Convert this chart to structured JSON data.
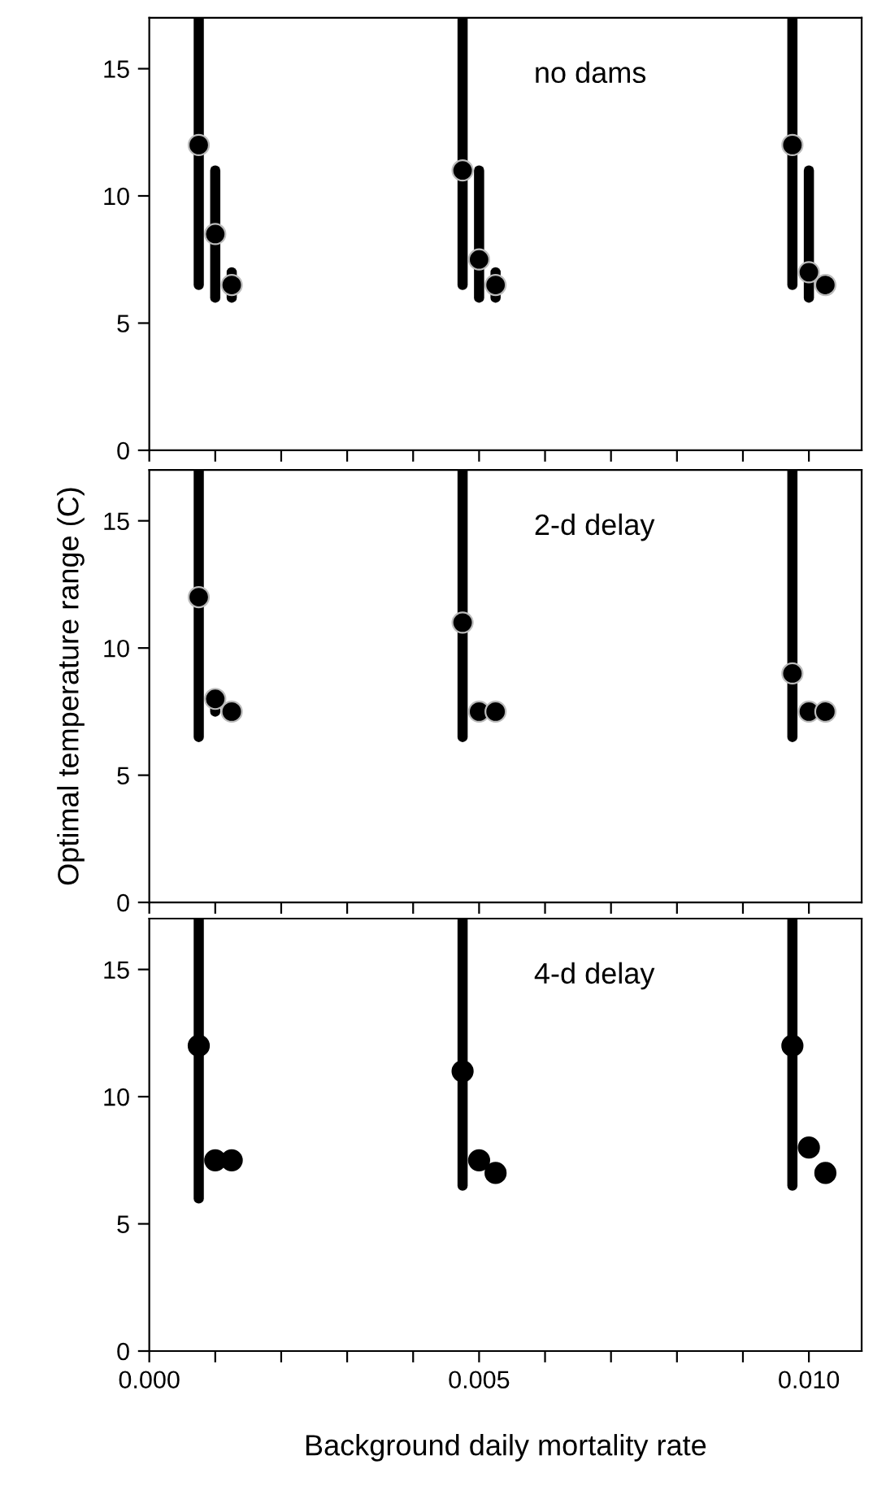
{
  "chart_data": [
    {
      "type": "scatter",
      "x": [
        0.00075,
        0.001,
        0.00125,
        0.00475,
        0.005,
        0.00525,
        0.00975,
        0.01,
        0.01025
      ],
      "series": [
        {
          "color": "#000000",
          "values": [
            12,
            8.5,
            6.5,
            11,
            7.5,
            6.5,
            12,
            7,
            6.5
          ],
          "errors": [
            [
              6.5,
              17
            ],
            [
              6,
              11
            ],
            [
              6,
              7
            ],
            [
              6.5,
              17
            ],
            [
              6,
              11
            ],
            [
              6,
              7
            ],
            [
              6.5,
              17
            ],
            [
              6,
              11
            ],
            null
          ]
        }
      ],
      "annotations": [
        "no dams"
      ],
      "marker": "circle",
      "tick_labels": "y",
      "xlim": [
        0,
        0.0108
      ],
      "xticks": [
        {
          "value": 0,
          "label": null
        },
        {
          "value": 0.001,
          "label": null
        },
        {
          "value": 0.002,
          "label": null
        },
        {
          "value": 0.003,
          "label": null
        },
        {
          "value": 0.004,
          "label": null
        },
        {
          "value": 0.005,
          "label": null
        },
        {
          "value": 0.006,
          "label": null
        },
        {
          "value": 0.007,
          "label": null
        },
        {
          "value": 0.008,
          "label": null
        },
        {
          "value": 0.009,
          "label": null
        },
        {
          "value": 0.01,
          "label": null
        }
      ],
      "ylim": [
        0,
        17
      ],
      "yticks": [
        0,
        5,
        10,
        15
      ]
    },
    {
      "type": "scatter",
      "x": [
        0.00075,
        0.001,
        0.00125,
        0.00475,
        0.005,
        0.00525,
        0.00975,
        0.01,
        0.01025
      ],
      "series": [
        {
          "color": "#000000",
          "values": [
            12,
            8,
            7.5,
            11,
            7.5,
            7.5,
            9,
            7.5,
            7.5
          ],
          "errors": [
            [
              6.5,
              17
            ],
            [
              7.5,
              8
            ],
            null,
            [
              6.5,
              17
            ],
            null,
            null,
            [
              6.5,
              17
            ],
            null,
            null
          ]
        }
      ],
      "annotations": [
        "2-d delay"
      ],
      "marker": "circle",
      "tick_labels": "y",
      "ylabel": "Optimal temperature range (C)",
      "xlim": [
        0,
        0.0108
      ],
      "xticks": [
        {
          "value": 0,
          "label": null
        },
        {
          "value": 0.001,
          "label": null
        },
        {
          "value": 0.002,
          "label": null
        },
        {
          "value": 0.003,
          "label": null
        },
        {
          "value": 0.004,
          "label": null
        },
        {
          "value": 0.005,
          "label": null
        },
        {
          "value": 0.006,
          "label": null
        },
        {
          "value": 0.007,
          "label": null
        },
        {
          "value": 0.008,
          "label": null
        },
        {
          "value": 0.009,
          "label": null
        },
        {
          "value": 0.01,
          "label": null
        }
      ],
      "ylim": [
        0,
        17
      ],
      "yticks": [
        0,
        5,
        10,
        15
      ]
    },
    {
      "type": "scatter",
      "x": [
        0.00075,
        0.001,
        0.00125,
        0.00475,
        0.005,
        0.00525,
        0.00975,
        0.01,
        0.01025
      ],
      "series": [
        {
          "color": "#000000",
          "values": [
            12,
            7.5,
            7.5,
            11,
            7.5,
            7,
            12,
            8,
            7
          ],
          "errors": [
            [
              6,
              17
            ],
            null,
            null,
            [
              6.5,
              17
            ],
            null,
            null,
            [
              6.5,
              17
            ],
            null,
            null
          ]
        }
      ],
      "annotations": [
        "4-d delay"
      ],
      "marker": "circle",
      "xlabel": "Background daily mortality rate",
      "xlim": [
        0,
        0.0108
      ],
      "xticks": [
        {
          "value": 0,
          "label": "0.000"
        },
        {
          "value": 0.001,
          "label": null
        },
        {
          "value": 0.002,
          "label": null
        },
        {
          "value": 0.003,
          "label": null
        },
        {
          "value": 0.004,
          "label": null
        },
        {
          "value": 0.005,
          "label": "0.005"
        },
        {
          "value": 0.006,
          "label": null
        },
        {
          "value": 0.007,
          "label": null
        },
        {
          "value": 0.008,
          "label": null
        },
        {
          "value": 0.009,
          "label": null
        },
        {
          "value": 0.01,
          "label": "0.010"
        }
      ],
      "ylim": [
        0,
        17
      ],
      "yticks": [
        0,
        5,
        10,
        15
      ]
    }
  ]
}
